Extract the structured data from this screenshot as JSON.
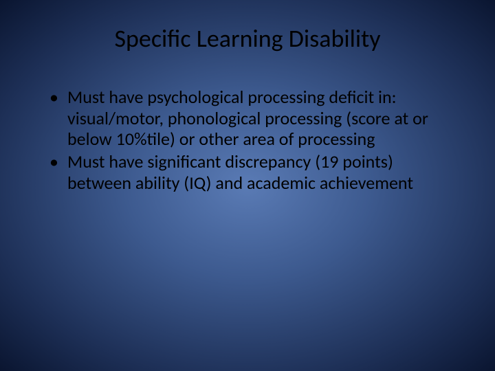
{
  "slide": {
    "title": "Specific Learning Disability",
    "bullets": [
      "Must have psychological processing deficit in: visual/motor, phonological processing (score at or below 10%tile) or other area of processing",
      "Must have significant discrepancy (19 points) between ability (IQ) and academic achievement"
    ],
    "background_gradient": {
      "center": "#5a7bb5",
      "mid": "#3d5a8f",
      "outer": "#1d2f56",
      "edge": "#0a1530"
    },
    "text_color": "#000000",
    "title_fontsize": 36,
    "body_fontsize": 26,
    "font_family": "Calibri"
  }
}
